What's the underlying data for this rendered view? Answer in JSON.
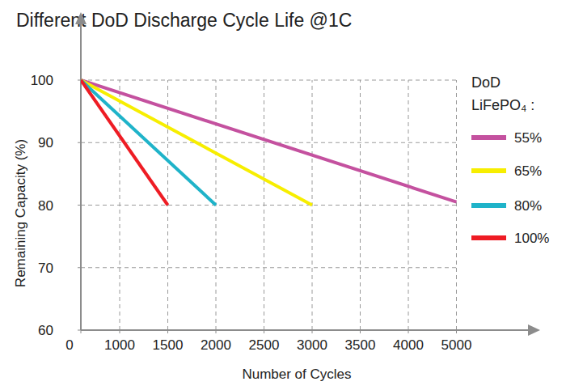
{
  "chart_data": {
    "type": "line",
    "title": "Different DoD Discharge Cycle Life @1C",
    "x_label": "Number of Cycles",
    "y_label": "Remaining Capacity (%)",
    "legend_title": [
      "DoD",
      "LiFePO₄ :"
    ],
    "series": [
      {
        "name": "55%",
        "color": "#c4519f",
        "x": [
          0,
          5000
        ],
        "values": [
          100,
          80.5
        ]
      },
      {
        "name": "65%",
        "color": "#f7ee00",
        "x": [
          0,
          3000
        ],
        "values": [
          100,
          80
        ]
      },
      {
        "name": "80%",
        "color": "#1fb3c9",
        "x": [
          0,
          2000
        ],
        "values": [
          100,
          80
        ]
      },
      {
        "name": "100%",
        "color": "#ee1c24",
        "x": [
          0,
          1500
        ],
        "values": [
          100,
          80
        ]
      }
    ],
    "xlim": [
      0,
      5000
    ],
    "xticks": [
      0,
      1000,
      1500,
      2000,
      2500,
      3000,
      3500,
      4000,
      5000
    ],
    "ylim": [
      60,
      100
    ],
    "yticks": [
      60,
      70,
      80,
      90,
      100
    ],
    "grid": true,
    "legend": "right"
  }
}
